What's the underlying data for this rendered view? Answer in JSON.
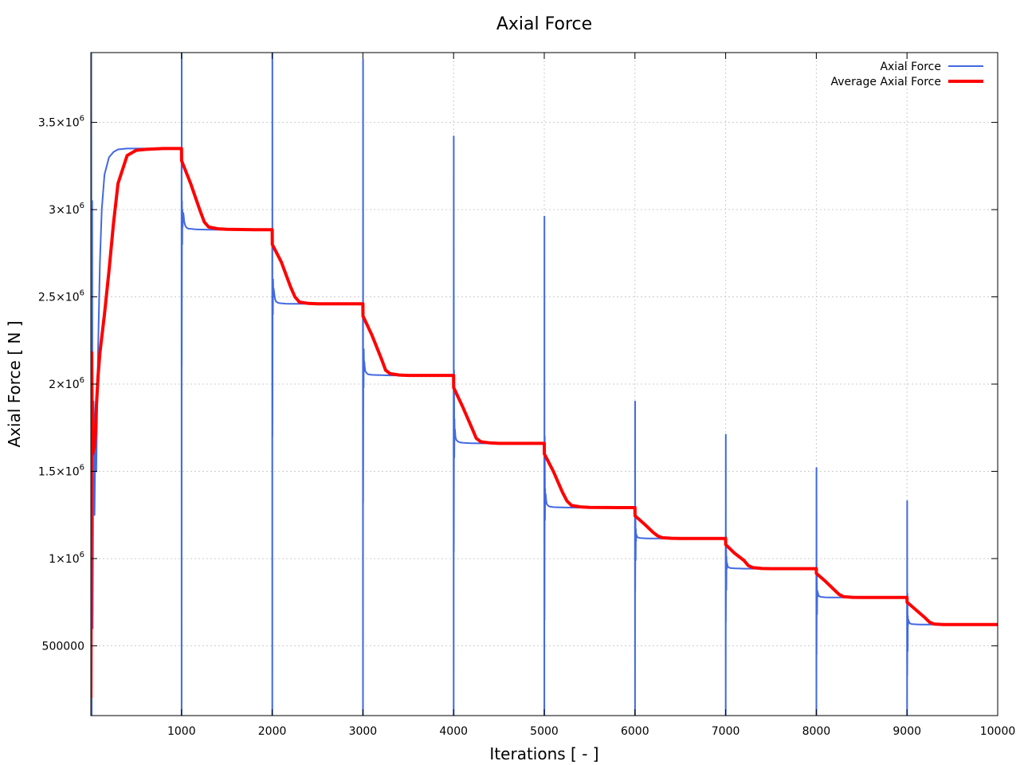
{
  "chart_data": {
    "type": "line",
    "title": "Axial Force",
    "xlabel": "Iterations [ - ]",
    "ylabel": "Axial Force [ N ]",
    "xlim": [
      0,
      10000
    ],
    "ylim": [
      100000,
      3900000
    ],
    "grid": true,
    "legend_position": "top-right",
    "x_ticks": [
      {
        "value": 1000,
        "label": "1000"
      },
      {
        "value": 2000,
        "label": "2000"
      },
      {
        "value": 3000,
        "label": "3000"
      },
      {
        "value": 4000,
        "label": "4000"
      },
      {
        "value": 5000,
        "label": "5000"
      },
      {
        "value": 6000,
        "label": "6000"
      },
      {
        "value": 7000,
        "label": "7000"
      },
      {
        "value": 8000,
        "label": "8000"
      },
      {
        "value": 9000,
        "label": "9000"
      },
      {
        "value": 10000,
        "label": "10000"
      }
    ],
    "y_ticks": [
      {
        "value": 500000,
        "label": "500000",
        "exp": ""
      },
      {
        "value": 1000000,
        "label": "1×10",
        "exp": "6"
      },
      {
        "value": 1500000,
        "label": "1.5×10",
        "exp": "6"
      },
      {
        "value": 2000000,
        "label": "2×10",
        "exp": "6"
      },
      {
        "value": 2500000,
        "label": "2.5×10",
        "exp": "6"
      },
      {
        "value": 3000000,
        "label": "3×10",
        "exp": "6"
      },
      {
        "value": 3500000,
        "label": "3.5×10",
        "exp": "6"
      }
    ],
    "series": [
      {
        "name": "Axial Force",
        "color": "#4169e1",
        "width": 2,
        "x": [
          0,
          5,
          10,
          15,
          20,
          30,
          40,
          50,
          60,
          70,
          80,
          100,
          120,
          150,
          200,
          250,
          300,
          400,
          500,
          600,
          700,
          800,
          900,
          1000,
          1001,
          1002,
          1003,
          1005,
          1008,
          1010,
          1012,
          1015,
          1020,
          1025,
          1030,
          1040,
          1050,
          1060,
          1080,
          1100,
          1150,
          1200,
          1300,
          1500,
          1800,
          2000,
          2001,
          2002,
          2003,
          2005,
          2008,
          2010,
          2012,
          2015,
          2020,
          2025,
          2030,
          2040,
          2050,
          2070,
          2100,
          2150,
          2200,
          2300,
          2500,
          2800,
          3000,
          3001,
          3002,
          3003,
          3005,
          3008,
          3010,
          3012,
          3015,
          3020,
          3025,
          3030,
          3040,
          3050,
          3070,
          3100,
          3150,
          3200,
          3300,
          3500,
          3800,
          4000,
          4001,
          4002,
          4003,
          4005,
          4008,
          4010,
          4012,
          4015,
          4020,
          4025,
          4030,
          4040,
          4050,
          4070,
          4100,
          4150,
          4200,
          4300,
          4500,
          4800,
          5000,
          5001,
          5002,
          5003,
          5005,
          5008,
          5010,
          5012,
          5015,
          5020,
          5025,
          5030,
          5040,
          5050,
          5070,
          5100,
          5150,
          5200,
          5300,
          5500,
          5800,
          6000,
          6001,
          6002,
          6003,
          6005,
          6008,
          6010,
          6012,
          6015,
          6020,
          6025,
          6030,
          6040,
          6050,
          6070,
          6100,
          6150,
          6200,
          6300,
          6500,
          6800,
          7000,
          7001,
          7002,
          7003,
          7005,
          7008,
          7010,
          7012,
          7015,
          7020,
          7025,
          7030,
          7040,
          7050,
          7070,
          7100,
          7150,
          7200,
          7300,
          7500,
          7800,
          8000,
          8001,
          8002,
          8003,
          8005,
          8008,
          8010,
          8012,
          8015,
          8020,
          8025,
          8030,
          8040,
          8050,
          8070,
          8100,
          8150,
          8200,
          8300,
          8500,
          8800,
          9000,
          9001,
          9002,
          9003,
          9005,
          9008,
          9010,
          9012,
          9015,
          9020,
          9025,
          9030,
          9040,
          9050,
          9070,
          9100,
          9150,
          9200,
          9300,
          9500,
          9800,
          10000
        ],
        "y": [
          800000,
          3900000,
          100000,
          3050000,
          600000,
          1900000,
          1250000,
          1700000,
          1500000,
          1900000,
          2200000,
          2700000,
          3000000,
          3200000,
          3300000,
          3330000,
          3345000,
          3350000,
          3350000,
          3350000,
          3350000,
          3350000,
          3350000,
          3350000,
          100000,
          3900000,
          2100000,
          3050000,
          2800000,
          3000000,
          2900000,
          2950000,
          2980000,
          2960000,
          2930000,
          2910000,
          2900000,
          2895000,
          2890000,
          2890000,
          2887000,
          2886000,
          2885000,
          2885000,
          2885000,
          2885000,
          100000,
          3900000,
          1700000,
          2600000,
          2400000,
          2600000,
          2500000,
          2550000,
          2530000,
          2510000,
          2490000,
          2475000,
          2470000,
          2465000,
          2463000,
          2461000,
          2460000,
          2460000,
          2460000,
          2460000,
          2460000,
          100000,
          3860000,
          1320000,
          2180000,
          1980000,
          2200000,
          2100000,
          2130000,
          2100000,
          2080000,
          2070000,
          2065000,
          2058000,
          2055000,
          2053000,
          2052000,
          2051000,
          2050000,
          2050000,
          2050000,
          2050000,
          100000,
          3420000,
          1040000,
          2080000,
          1580000,
          1800000,
          1700000,
          1740000,
          1700000,
          1690000,
          1680000,
          1675000,
          1670000,
          1666000,
          1664000,
          1662000,
          1661000,
          1660000,
          1660000,
          1660000,
          1660000,
          100000,
          2960000,
          650000,
          1700000,
          1220000,
          1400000,
          1320000,
          1370000,
          1340000,
          1320000,
          1310000,
          1305000,
          1300000,
          1297000,
          1295000,
          1294000,
          1293000,
          1292000,
          1292000,
          1292000,
          1292000,
          100000,
          1900000,
          810000,
          1300000,
          990000,
          1170000,
          1100000,
          1140000,
          1130000,
          1125000,
          1122000,
          1120000,
          1118000,
          1117000,
          1116000,
          1115000,
          1115000,
          1115000,
          1115000,
          1115000,
          1115000,
          100000,
          1710000,
          640000,
          1130000,
          820000,
          1010000,
          940000,
          975000,
          962000,
          955000,
          950000,
          948000,
          946000,
          945000,
          944000,
          943000,
          942000,
          942000,
          942000,
          942000,
          942000,
          100000,
          1520000,
          450000,
          950000,
          680000,
          820000,
          780000,
          810000,
          795000,
          790000,
          785000,
          782000,
          780000,
          779000,
          778000,
          777000,
          777000,
          777000,
          777000,
          777000,
          777000,
          100000,
          1330000,
          330000,
          800000,
          470000,
          670000,
          620000,
          650000,
          640000,
          635000,
          630000,
          627000,
          625000,
          624000,
          623000,
          622000,
          622000,
          622000,
          622000,
          622000,
          622000
        ]
      },
      {
        "name": "Average Axial Force",
        "color": "#ff0000",
        "width": 4,
        "x": [
          0,
          5,
          10,
          15,
          20,
          30,
          40,
          50,
          60,
          80,
          100,
          150,
          200,
          250,
          300,
          400,
          500,
          600,
          700,
          800,
          900,
          1000,
          1001,
          1100,
          1200,
          1250,
          1300,
          1400,
          1500,
          1800,
          2000,
          2001,
          2100,
          2200,
          2250,
          2300,
          2400,
          2500,
          2800,
          3000,
          3001,
          3100,
          3200,
          3250,
          3300,
          3400,
          3500,
          3800,
          4000,
          4001,
          4100,
          4200,
          4250,
          4300,
          4400,
          4500,
          4800,
          5000,
          5001,
          5100,
          5200,
          5250,
          5300,
          5400,
          5500,
          5800,
          6000,
          6001,
          6100,
          6200,
          6250,
          6300,
          6400,
          6500,
          6800,
          7000,
          7001,
          7100,
          7200,
          7250,
          7300,
          7400,
          7500,
          7800,
          8000,
          8001,
          8100,
          8200,
          8250,
          8300,
          8400,
          8500,
          8800,
          9000,
          9001,
          9100,
          9200,
          9250,
          9300,
          9400,
          9500,
          9800,
          10000
        ],
        "y": [
          200000,
          1200000,
          2180000,
          1700000,
          1600000,
          1620000,
          1640000,
          1720000,
          1860000,
          2050000,
          2180000,
          2400000,
          2650000,
          2920000,
          3150000,
          3310000,
          3340000,
          3345000,
          3348000,
          3350000,
          3350000,
          3350000,
          3280000,
          3150000,
          3000000,
          2930000,
          2900000,
          2890000,
          2887000,
          2885000,
          2885000,
          2800000,
          2700000,
          2560000,
          2500000,
          2470000,
          2462000,
          2460000,
          2460000,
          2460000,
          2390000,
          2280000,
          2150000,
          2080000,
          2060000,
          2052000,
          2050000,
          2050000,
          2050000,
          1980000,
          1870000,
          1750000,
          1690000,
          1670000,
          1663000,
          1660000,
          1660000,
          1660000,
          1600000,
          1500000,
          1380000,
          1330000,
          1305000,
          1296000,
          1293000,
          1292000,
          1292000,
          1245000,
          1200000,
          1150000,
          1130000,
          1120000,
          1116000,
          1115000,
          1115000,
          1115000,
          1080000,
          1030000,
          990000,
          960000,
          948000,
          943000,
          942000,
          942000,
          942000,
          915000,
          870000,
          820000,
          795000,
          782000,
          778000,
          777000,
          777000,
          777000,
          750000,
          705000,
          660000,
          635000,
          625000,
          622000,
          622000,
          622000,
          622000
        ]
      }
    ]
  }
}
